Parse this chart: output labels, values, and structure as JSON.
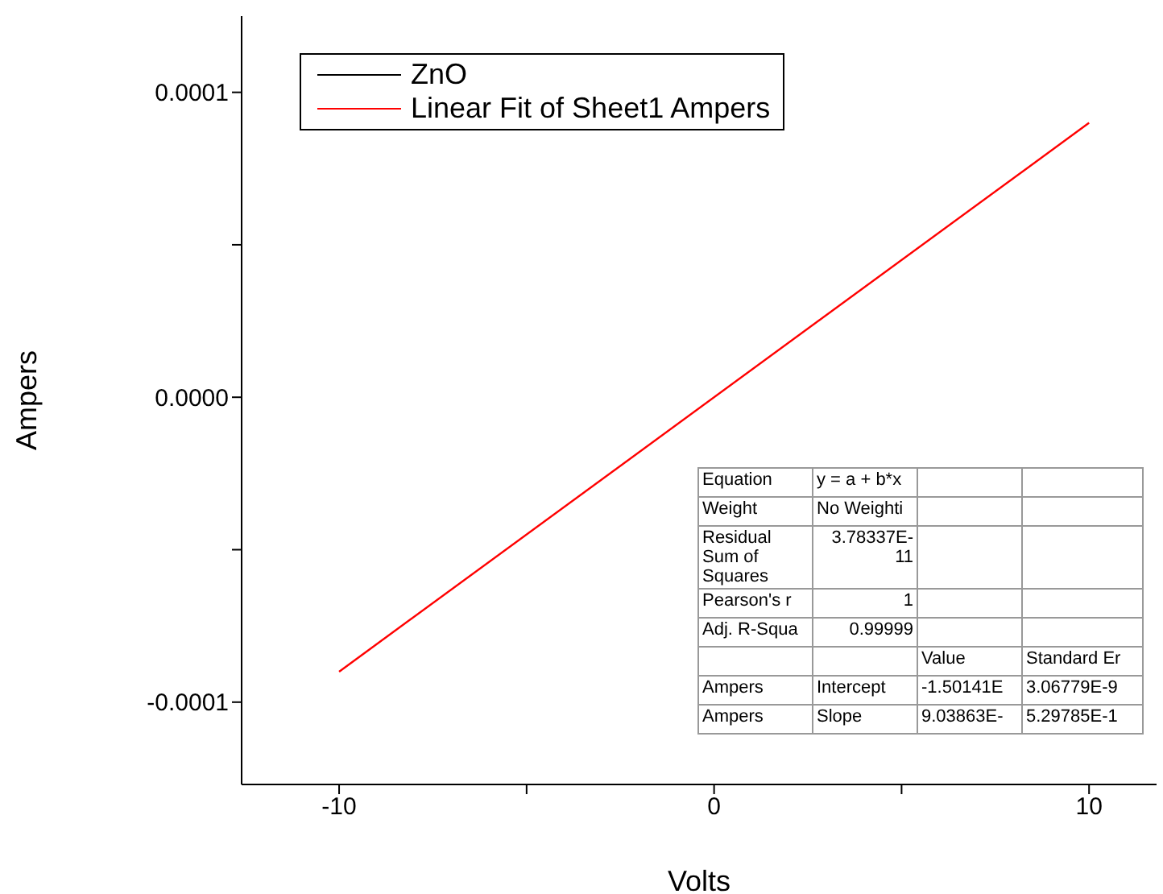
{
  "chart_data": {
    "type": "line",
    "xlabel": "Volts",
    "ylabel": "Ampers",
    "xlim": [
      -12.6,
      11.8
    ],
    "xticks": [
      -10,
      {
        "value": -5,
        "label": null
      },
      0,
      {
        "value": 5,
        "label": null
      },
      10
    ],
    "ylim": [
      -0.000127,
      0.000125
    ],
    "yticks": [
      {
        "value": -0.0001,
        "label": "-0.0001"
      },
      {
        "value": -5e-05,
        "label": null
      },
      {
        "value": 0,
        "label": "0.0000"
      },
      {
        "value": 5e-05,
        "label": null
      },
      {
        "value": 0.0001,
        "label": "0.0001"
      }
    ],
    "series": [
      {
        "name": "ZnO",
        "color": "#000000"
      },
      {
        "name": "Linear Fit of Sheet1 Ampers",
        "color": "#ff0000",
        "x": [
          -10,
          10
        ],
        "values": [
          -9e-05,
          9e-05
        ]
      }
    ],
    "legend": "top left",
    "grid": false,
    "marker": "none",
    "line_style": "solid",
    "annotations": [
      "Equation",
      "y = a + b*x",
      "Weight",
      "No Weighti",
      "Residual Sum of Squares",
      "3.78337E-11",
      "Pearson's r",
      "1",
      "Adj. R-Squa",
      "0.99999",
      "Value",
      "Standard Er",
      "Ampers",
      "Intercept",
      "-1.50141E",
      "3.06779E-9",
      "Ampers",
      "Slope",
      "9.03863E-",
      "5.29785E-1"
    ]
  }
}
